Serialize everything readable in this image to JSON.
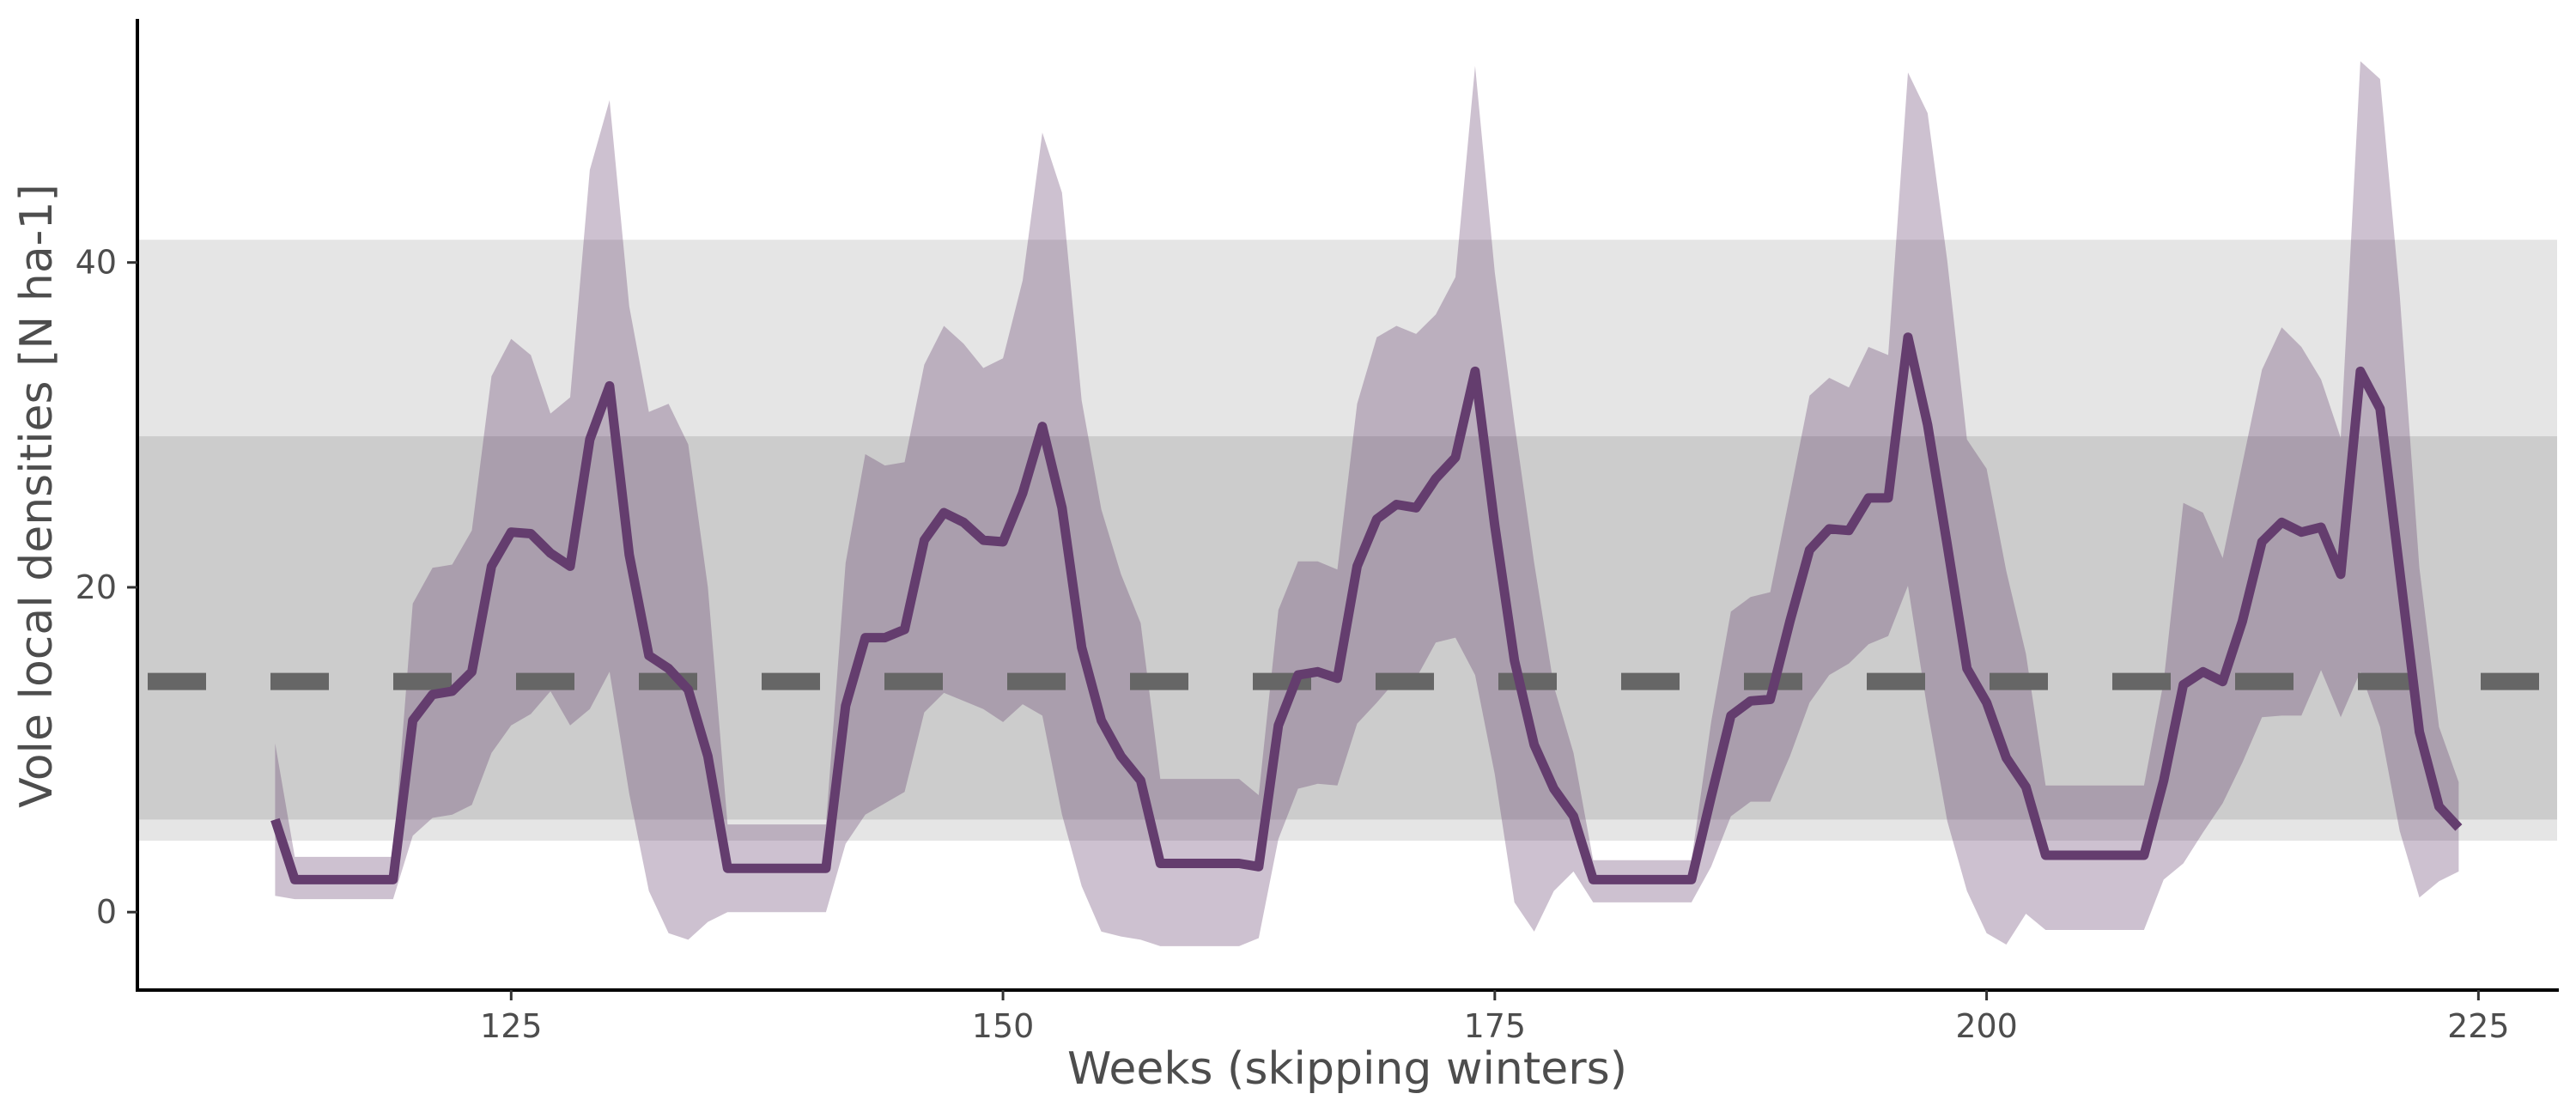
{
  "chart_data": {
    "type": "line",
    "title": "",
    "xlabel": "Weeks (skipping winters)",
    "ylabel": "Vole local densities [N ha-1]",
    "xlim": [
      106,
      229
    ],
    "ylim": [
      -4.8,
      55
    ],
    "x_ticks": [
      125,
      150,
      175,
      200,
      225
    ],
    "y_ticks": [
      0,
      20,
      40
    ],
    "grid": false,
    "legend": "none",
    "colors": {
      "line": "#643d6e",
      "ribbon": "#bcaabf",
      "band_outer": "#e5e5e5",
      "band_inner": "#cccccc",
      "reference_line": "#666666"
    },
    "bands": [
      {
        "y0": 4.4,
        "y1": 41.4
      },
      {
        "y0": 5.7,
        "y1": 29.3
      }
    ],
    "reference_line": {
      "y": 14.2,
      "style": "dashed"
    },
    "series": [
      {
        "x": [
          113,
          114,
          115,
          116,
          117,
          118,
          119,
          120,
          121,
          122,
          123,
          124,
          125,
          126,
          127,
          128,
          129,
          130,
          131,
          132,
          133,
          134,
          135,
          136,
          137,
          138,
          139,
          140,
          141,
          142,
          143,
          144,
          145,
          146,
          147,
          148,
          149,
          150,
          151,
          152,
          153,
          154,
          155,
          156,
          157,
          158,
          159,
          160,
          161,
          162,
          163,
          164,
          165,
          166,
          167,
          168,
          169,
          170,
          171,
          172,
          173,
          174,
          175,
          176,
          177,
          178,
          179,
          180,
          181,
          182,
          183,
          184,
          185,
          186,
          187,
          188,
          189,
          190,
          191,
          192,
          193,
          194,
          195,
          196,
          197,
          198,
          199,
          200,
          201,
          202,
          203,
          204,
          205,
          206,
          207,
          208,
          209,
          210,
          211,
          212,
          213,
          214,
          215,
          216,
          217,
          218,
          219,
          220,
          221,
          222,
          223,
          224
        ],
        "y": [
          5.7,
          2.0,
          2.0,
          2.0,
          2.0,
          2.0,
          2.0,
          11.8,
          13.4,
          13.6,
          14.8,
          21.3,
          23.4,
          23.3,
          22.1,
          21.3,
          29.1,
          32.4,
          22.0,
          15.8,
          15.0,
          13.7,
          9.6,
          2.7,
          2.7,
          2.7,
          2.7,
          2.7,
          2.7,
          12.7,
          16.9,
          16.9,
          17.4,
          22.9,
          24.6,
          24.0,
          22.9,
          22.8,
          25.8,
          29.9,
          24.9,
          16.3,
          11.8,
          9.6,
          8.1,
          3.0,
          3.0,
          3.0,
          3.0,
          3.0,
          2.8,
          11.5,
          14.6,
          14.8,
          14.4,
          21.3,
          24.2,
          25.1,
          24.9,
          26.7,
          28.0,
          33.3,
          23.8,
          15.5,
          10.3,
          7.6,
          5.9,
          2.0,
          2.0,
          2.0,
          2.0,
          2.0,
          2.0,
          7.1,
          12.1,
          13.0,
          13.1,
          17.9,
          22.3,
          23.6,
          23.5,
          25.5,
          25.5,
          35.4,
          30.0,
          22.6,
          15.0,
          12.9,
          9.5,
          7.7,
          3.5,
          3.5,
          3.5,
          3.5,
          3.5,
          3.5,
          8.1,
          14.0,
          14.8,
          14.2,
          17.9,
          22.8,
          24.0,
          23.4,
          23.7,
          20.8,
          33.3,
          31.0,
          21.0,
          11.1,
          6.5,
          5.2
        ],
        "lower": [
          1.0,
          0.8,
          0.8,
          0.8,
          0.8,
          0.8,
          0.8,
          4.7,
          5.8,
          6.0,
          6.6,
          9.8,
          11.5,
          12.2,
          13.6,
          11.5,
          12.5,
          14.8,
          7.3,
          1.3,
          -1.3,
          -1.7,
          -0.6,
          0.0,
          0.0,
          0.0,
          0.0,
          0.0,
          0.0,
          4.2,
          6.0,
          6.7,
          7.4,
          12.3,
          13.5,
          13.0,
          12.5,
          11.7,
          12.8,
          12.1,
          6.0,
          1.6,
          -1.2,
          -1.5,
          -1.7,
          -2.1,
          -2.1,
          -2.1,
          -2.1,
          -2.1,
          -1.6,
          4.5,
          7.6,
          7.9,
          7.8,
          11.6,
          12.9,
          14.3,
          14.4,
          16.6,
          16.9,
          14.6,
          8.5,
          0.6,
          -1.2,
          1.3,
          2.5,
          0.6,
          0.6,
          0.6,
          0.6,
          0.6,
          0.6,
          2.8,
          5.9,
          6.8,
          6.8,
          9.6,
          12.9,
          14.6,
          15.3,
          16.5,
          17.0,
          20.1,
          12.4,
          5.6,
          1.3,
          -1.3,
          -2.0,
          -0.1,
          -1.1,
          -1.1,
          -1.1,
          -1.1,
          -1.1,
          -1.1,
          2.0,
          3.0,
          4.9,
          6.7,
          9.2,
          12.0,
          12.1,
          12.1,
          14.9,
          12.0,
          14.8,
          11.4,
          5.0,
          0.9,
          1.9,
          2.5
        ],
        "upper": [
          10.4,
          3.4,
          3.4,
          3.4,
          3.4,
          3.4,
          3.4,
          19.0,
          21.2,
          21.4,
          23.5,
          33.0,
          35.3,
          34.3,
          30.7,
          31.7,
          45.7,
          50.0,
          37.3,
          30.8,
          31.3,
          28.8,
          20.0,
          5.4,
          5.4,
          5.4,
          5.4,
          5.4,
          5.4,
          21.5,
          28.2,
          27.5,
          27.7,
          33.7,
          36.1,
          35.0,
          33.5,
          34.1,
          38.9,
          48.0,
          44.3,
          31.5,
          24.8,
          20.8,
          17.8,
          8.2,
          8.2,
          8.2,
          8.2,
          8.2,
          7.2,
          18.6,
          21.6,
          21.6,
          21.1,
          31.3,
          35.4,
          36.1,
          35.6,
          36.8,
          39.1,
          52.1,
          39.4,
          30.1,
          21.5,
          13.9,
          9.8,
          3.2,
          3.2,
          3.2,
          3.2,
          3.2,
          3.2,
          11.7,
          18.5,
          19.4,
          19.7,
          25.7,
          31.8,
          32.9,
          32.3,
          34.8,
          34.3,
          51.7,
          49.2,
          40.1,
          29.1,
          27.3,
          21.0,
          15.9,
          7.8,
          7.8,
          7.8,
          7.8,
          7.8,
          7.8,
          14.2,
          25.2,
          24.6,
          21.8,
          27.6,
          33.4,
          36.0,
          34.8,
          32.8,
          29.2,
          52.4,
          51.3,
          38.0,
          21.2,
          11.4,
          8.0
        ]
      }
    ]
  }
}
